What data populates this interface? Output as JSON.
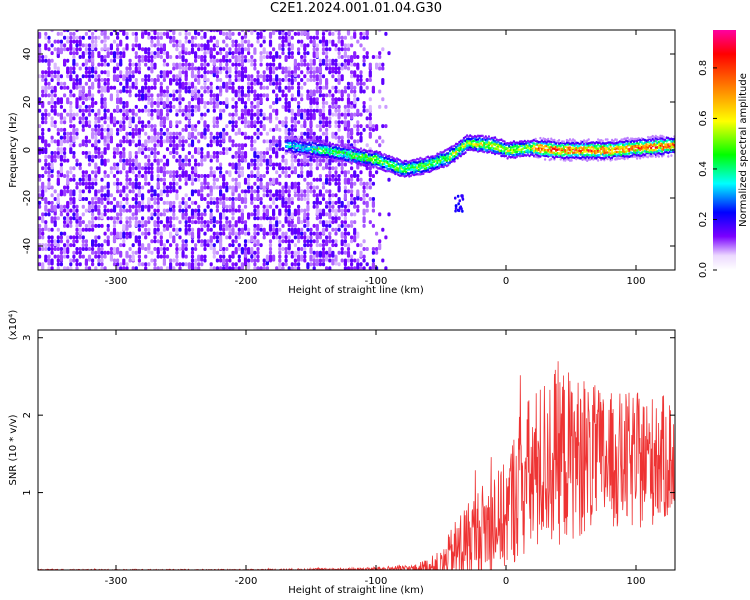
{
  "title": "C2E1.2024.001.01.04.G30",
  "chart_data": [
    {
      "type": "heatmap",
      "xlabel": "Height of straight line (km)",
      "ylabel": "Frequency (Hz)",
      "xlim": [
        -360,
        130
      ],
      "ylim": [
        -50,
        50
      ],
      "xticks": [
        -300,
        -200,
        -100,
        0,
        100
      ],
      "yticks": [
        -40,
        -20,
        0,
        20,
        40
      ],
      "colorbar": {
        "label": "Normalized spectral amplitude",
        "ticks": [
          0.0,
          0.2,
          0.4,
          0.6,
          0.8
        ],
        "tick_labels": [
          "0.0",
          "0.2",
          "0.4",
          "0.6",
          "0.8"
        ],
        "range": [
          0,
          0.95
        ],
        "colormap": [
          "#ffffff",
          "#7a00ff",
          "#0000ff",
          "#00ffff",
          "#00ff00",
          "#ffff00",
          "#ff8000",
          "#ff0000",
          "#ff00a0"
        ]
      },
      "ridge": {
        "x": [
          -170,
          -140,
          -120,
          -100,
          -80,
          -60,
          -45,
          -30,
          -10,
          0,
          20,
          40,
          60,
          80,
          100,
          130
        ],
        "y": [
          2,
          0,
          -2,
          -4,
          -8,
          -6,
          -3,
          3,
          2,
          0,
          1,
          0,
          0,
          0,
          1,
          2
        ]
      },
      "noise_region_x": [
        -360,
        -120
      ]
    },
    {
      "type": "line",
      "xlabel": "Height of straight line (km)",
      "ylabel": "SNR (10 * v/v)",
      "y_multiplier": "(x10⁴)",
      "xlim": [
        -360,
        130
      ],
      "ylim": [
        0,
        3.1
      ],
      "xticks": [
        -300,
        -200,
        -100,
        0,
        100
      ],
      "yticks": [
        1,
        2,
        3
      ],
      "series": [
        {
          "color": "#ee3333",
          "envelope": {
            "x": [
              -360,
              -200,
              -110,
              -70,
              -50,
              -35,
              -20,
              0,
              10,
              20,
              30,
              40,
              60,
              80,
              100,
              130
            ],
            "mean": [
              0.0,
              0.0,
              0.01,
              0.02,
              0.05,
              0.3,
              0.5,
              0.7,
              1.1,
              1.2,
              1.4,
              1.5,
              1.45,
              1.4,
              1.4,
              1.45
            ],
            "spread": [
              0.01,
              0.01,
              0.02,
              0.05,
              0.2,
              0.5,
              0.6,
              0.7,
              1.0,
              1.1,
              1.1,
              1.2,
              1.0,
              0.9,
              0.9,
              0.8
            ]
          }
        }
      ]
    }
  ]
}
